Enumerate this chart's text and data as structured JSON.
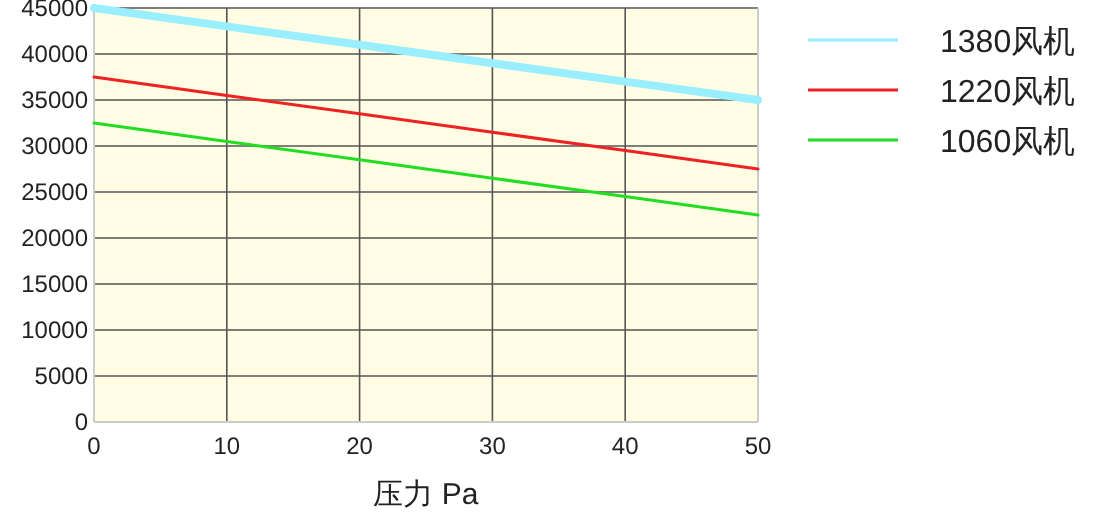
{
  "chart_data": {
    "type": "line",
    "xlabel": "压力 Pa",
    "x": [
      0,
      10,
      20,
      30,
      40,
      50
    ],
    "series": [
      {
        "name": "1380风机",
        "color": "#99eeff",
        "values": [
          45000,
          43000,
          41000,
          39000,
          37000,
          35000
        ]
      },
      {
        "name": "1220风机",
        "color": "#ee2222",
        "values": [
          37500,
          35500,
          33500,
          31500,
          29500,
          27500
        ]
      },
      {
        "name": "1060风机",
        "color": "#22dd22",
        "values": [
          32500,
          30500,
          28500,
          26500,
          24500,
          22500
        ]
      }
    ],
    "xlim": [
      0,
      50
    ],
    "xticks": [
      0,
      10,
      20,
      30,
      40,
      50
    ],
    "ylim": [
      0,
      45000
    ],
    "yticks": [
      0,
      5000,
      10000,
      15000,
      20000,
      25000,
      30000,
      35000,
      40000,
      45000
    ],
    "grid": true,
    "legend": "top right",
    "marker": "none",
    "line_style": "solid"
  }
}
